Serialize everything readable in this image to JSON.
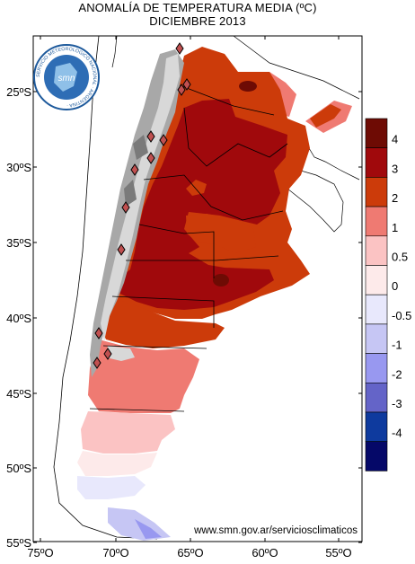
{
  "title_line1": "ANOMALÍA DE TEMPERATURA MEDIA (ºC)",
  "title_line2": "DICIEMBRE 2013",
  "website": "www.smn.gov.ar/serviciosclimaticos",
  "logo_text": "SERVICIO METEOROLOGICO NACIONAL · ARGENTINA ·",
  "logo_center": "smn",
  "lat_labels": [
    "25ºS",
    "30ºS",
    "35ºS",
    "40ºS",
    "45ºS",
    "50ºS",
    "55ºS"
  ],
  "lon_labels": [
    "75ºO",
    "70ºO",
    "65ºO",
    "60ºO",
    "55ºO"
  ],
  "legend": {
    "labels": [
      "4",
      "3",
      "2",
      "1",
      "0.5",
      "0",
      "-0.5",
      "-1",
      "-2",
      "-3",
      "-4"
    ],
    "colors": [
      "#6e0b04",
      "#a0090c",
      "#cc3b0a",
      "#ef7a72",
      "#fbc3c3",
      "#fdeaea",
      "#e8e8fc",
      "#c6c6f4",
      "#9898f0",
      "#6464c8",
      "#0e3a9e",
      "#050868"
    ]
  }
}
